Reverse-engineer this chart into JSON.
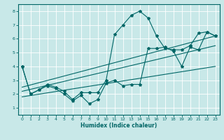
{
  "title": "",
  "xlabel": "Humidex (Indice chaleur)",
  "ylabel": "",
  "bg_color": "#c8e8e8",
  "grid_color": "#a8d8d8",
  "line_color": "#006666",
  "xlim": [
    -0.5,
    23.5
  ],
  "ylim": [
    0.5,
    8.5
  ],
  "xticks": [
    0,
    1,
    2,
    3,
    4,
    5,
    6,
    7,
    8,
    9,
    10,
    11,
    12,
    13,
    14,
    15,
    16,
    17,
    18,
    19,
    20,
    21,
    22,
    23
  ],
  "yticks": [
    1,
    2,
    3,
    4,
    5,
    6,
    7,
    8
  ],
  "lines": [
    {
      "x": [
        0,
        1,
        2,
        3,
        4,
        5,
        6,
        7,
        8,
        9,
        10,
        11,
        12,
        13,
        14,
        15,
        16,
        17,
        18,
        19,
        20,
        21,
        22,
        23
      ],
      "y": [
        4.0,
        2.0,
        2.3,
        2.7,
        2.5,
        2.2,
        1.6,
        2.1,
        2.1,
        2.1,
        3.0,
        6.3,
        7.0,
        7.7,
        8.0,
        7.5,
        6.2,
        5.3,
        5.2,
        5.2,
        5.5,
        6.4,
        6.5,
        6.2
      ],
      "marker": true
    },
    {
      "x": [
        0,
        1,
        2,
        3,
        4,
        5,
        6,
        7,
        8,
        9,
        10,
        11,
        12,
        13,
        14,
        15,
        16,
        17,
        18,
        19,
        20,
        21,
        22,
        23
      ],
      "y": [
        4.0,
        2.0,
        2.3,
        2.6,
        2.4,
        2.0,
        1.5,
        1.9,
        1.3,
        1.6,
        2.8,
        3.0,
        2.6,
        2.7,
        2.7,
        5.3,
        5.3,
        5.4,
        5.1,
        4.0,
        5.4,
        5.2,
        6.5,
        6.2
      ],
      "marker": true
    },
    {
      "x": [
        0,
        23
      ],
      "y": [
        2.5,
        6.2
      ],
      "marker": false
    },
    {
      "x": [
        0,
        23
      ],
      "y": [
        2.2,
        5.5
      ],
      "marker": false
    },
    {
      "x": [
        0,
        23
      ],
      "y": [
        1.8,
        4.0
      ],
      "marker": false
    }
  ]
}
